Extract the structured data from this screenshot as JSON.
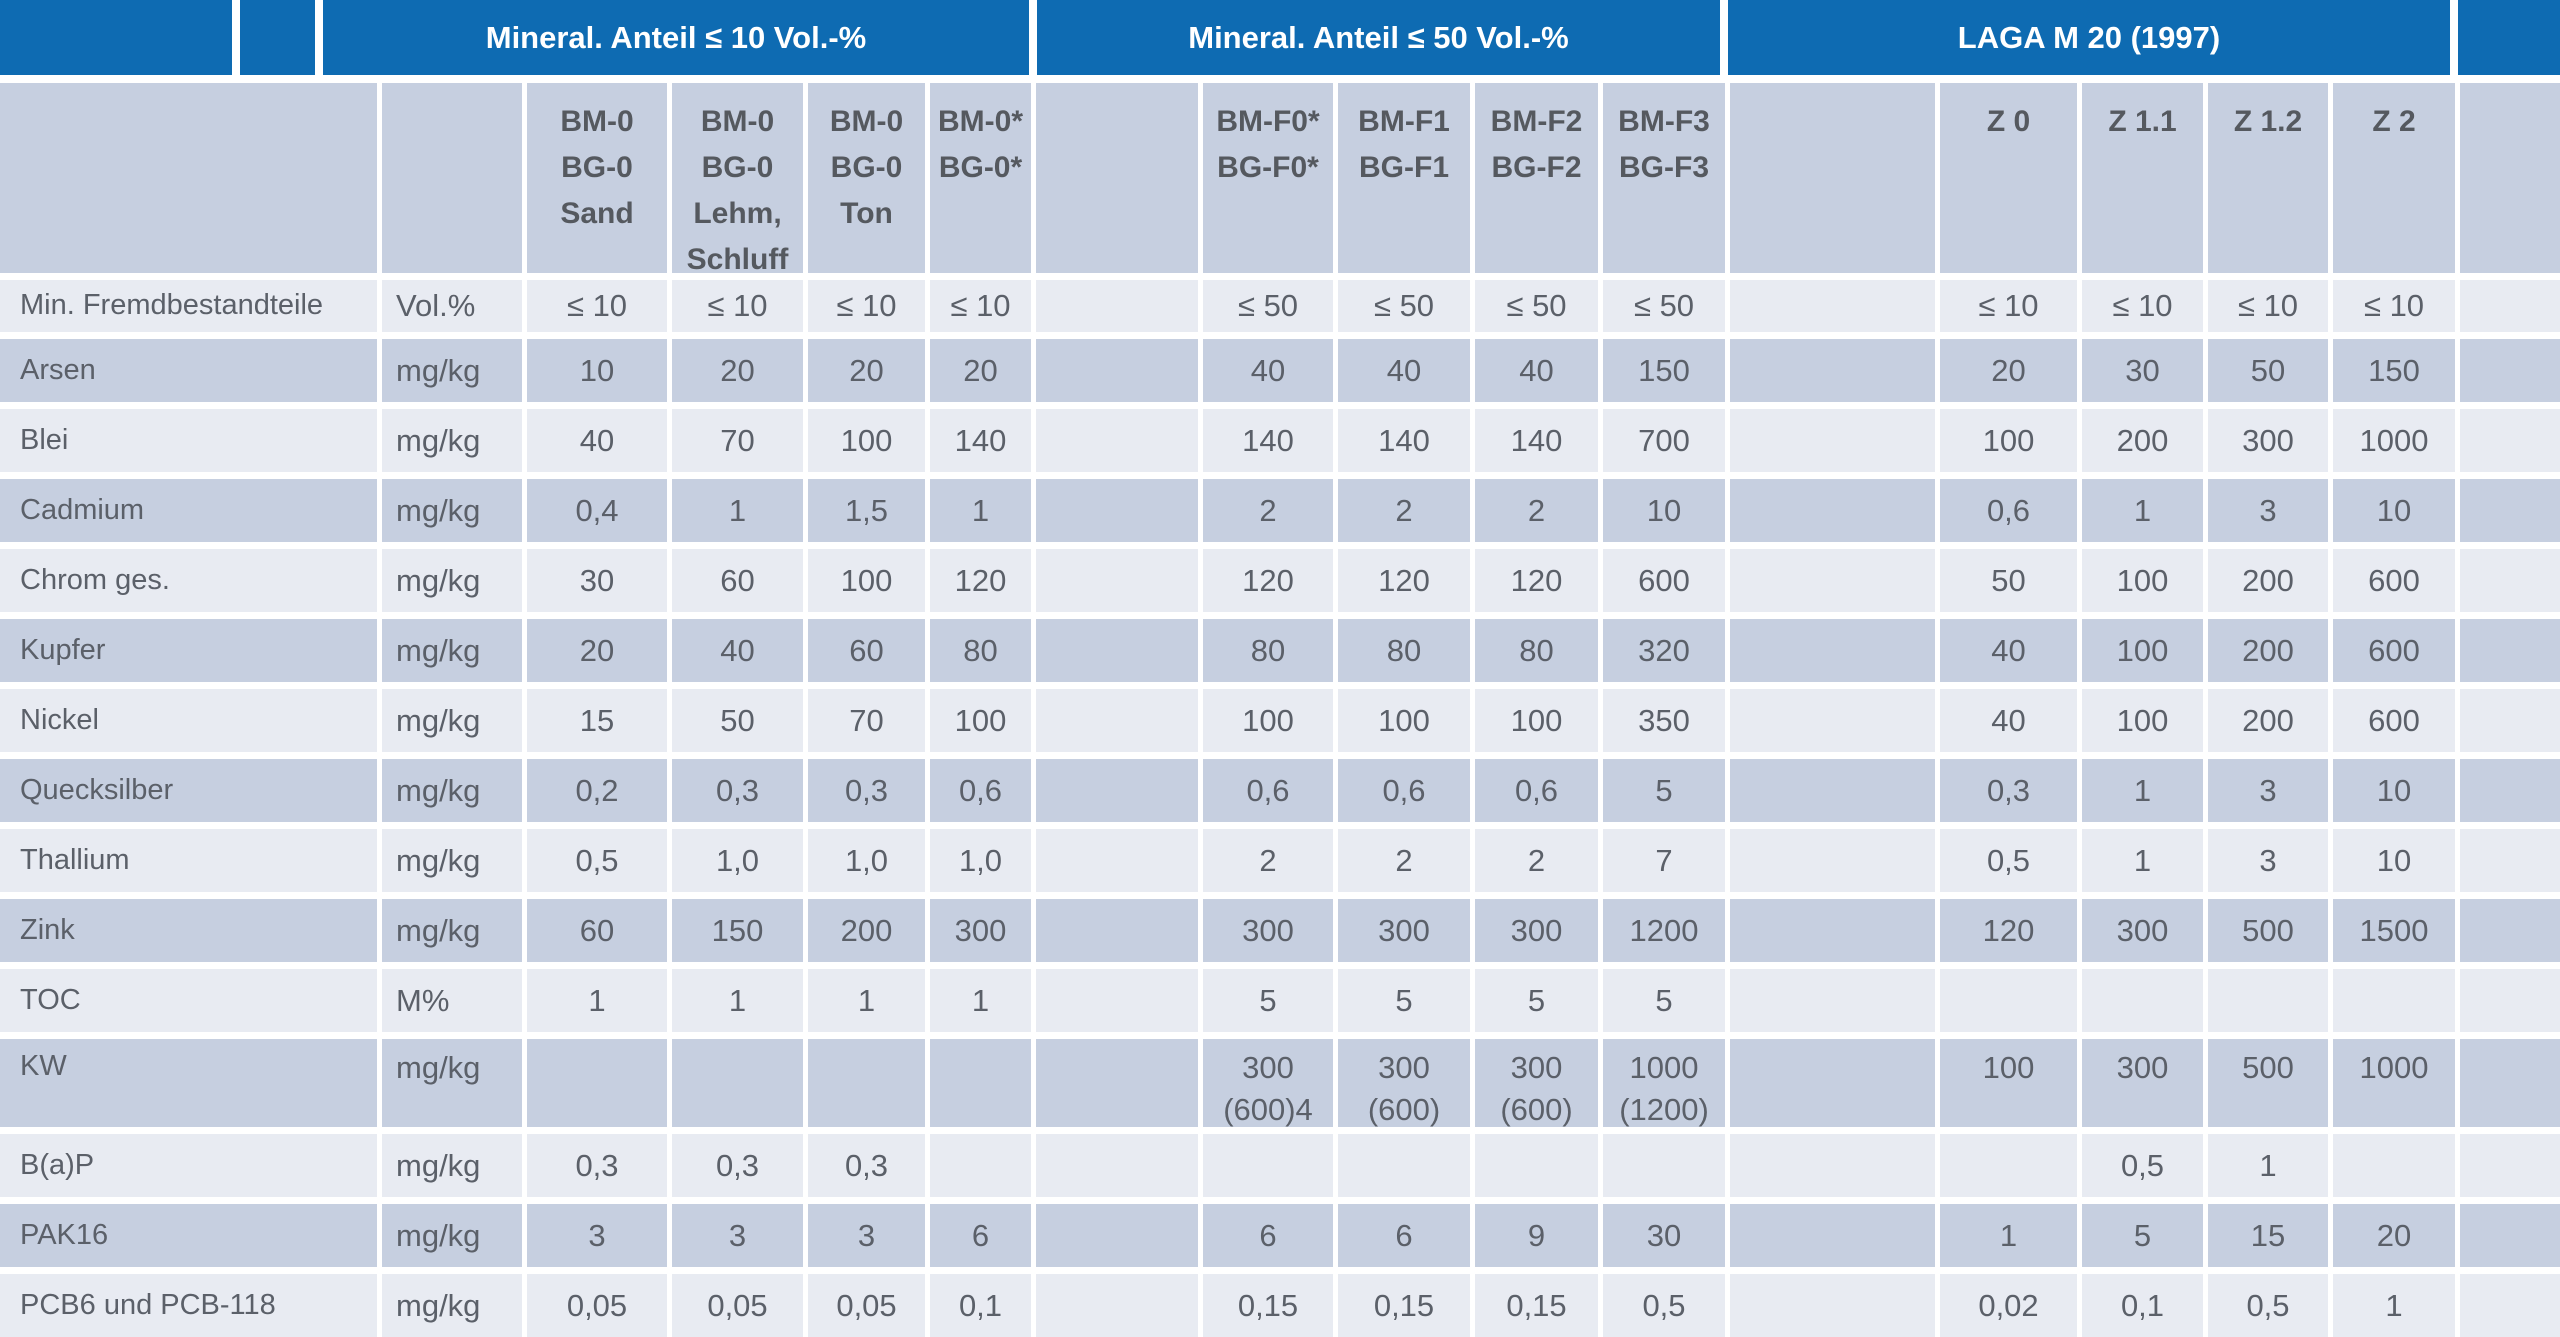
{
  "colors": {
    "header_blue": "#0e6bb2",
    "stripe_dark": "#c6cfe0",
    "stripe_light": "#e8ebf2",
    "text_gray": "#5b6069"
  },
  "table": {
    "group_headers": {
      "g1": "Mineral. Anteil ≤ 10 Vol.-%",
      "g2": "Mineral. Anteil ≤ 50 Vol.-%",
      "g3": "LAGA M 20 (1997)"
    },
    "column_headers": [
      "BM-0\nBG-0\nSand",
      "BM-0\nBG-0\nLehm,\nSchluff",
      "BM-0\nBG-0\nTon",
      "BM-0*\nBG-0*",
      "BM-F0*\nBG-F0*",
      "BM-F1\nBG-F1",
      "BM-F2\nBG-F2",
      "BM-F3\nBG-F3",
      "Z 0",
      "Z 1.1",
      "Z 1.2",
      "Z 2"
    ],
    "rows": [
      {
        "label": "Min. Fremdbestandteile",
        "unit": "Vol.%",
        "values": [
          "≤ 10",
          "≤ 10",
          "≤ 10",
          "≤ 10",
          "≤ 50",
          "≤ 50",
          "≤ 50",
          "≤ 50",
          "≤ 10",
          "≤ 10",
          "≤ 10",
          "≤ 10"
        ]
      },
      {
        "label": "Arsen",
        "unit": "mg/kg",
        "values": [
          "10",
          "20",
          "20",
          "20",
          "40",
          "40",
          "40",
          "150",
          "20",
          "30",
          "50",
          "150"
        ]
      },
      {
        "label": "Blei",
        "unit": "mg/kg",
        "values": [
          "40",
          "70",
          "100",
          "140",
          "140",
          "140",
          "140",
          "700",
          "100",
          "200",
          "300",
          "1000"
        ]
      },
      {
        "label": "Cadmium",
        "unit": "mg/kg",
        "values": [
          "0,4",
          "1",
          "1,5",
          "1",
          "2",
          "2",
          "2",
          "10",
          "0,6",
          "1",
          "3",
          "10"
        ]
      },
      {
        "label": "Chrom ges.",
        "unit": "mg/kg",
        "values": [
          "30",
          "60",
          "100",
          "120",
          "120",
          "120",
          "120",
          "600",
          "50",
          "100",
          "200",
          "600"
        ]
      },
      {
        "label": "Kupfer",
        "unit": "mg/kg",
        "values": [
          "20",
          "40",
          "60",
          "80",
          "80",
          "80",
          "80",
          "320",
          "40",
          "100",
          "200",
          "600"
        ]
      },
      {
        "label": "Nickel",
        "unit": "mg/kg",
        "values": [
          "15",
          "50",
          "70",
          "100",
          "100",
          "100",
          "100",
          "350",
          "40",
          "100",
          "200",
          "600"
        ]
      },
      {
        "label": "Quecksilber",
        "unit": "mg/kg",
        "values": [
          "0,2",
          "0,3",
          "0,3",
          "0,6",
          "0,6",
          "0,6",
          "0,6",
          "5",
          "0,3",
          "1",
          "3",
          "10"
        ]
      },
      {
        "label": "Thallium",
        "unit": "mg/kg",
        "values": [
          "0,5",
          "1,0",
          "1,0",
          "1,0",
          "2",
          "2",
          "2",
          "7",
          "0,5",
          "1",
          "3",
          "10"
        ]
      },
      {
        "label": "Zink",
        "unit": "mg/kg",
        "values": [
          "60",
          "150",
          "200",
          "300",
          "300",
          "300",
          "300",
          "1200",
          "120",
          "300",
          "500",
          "1500"
        ]
      },
      {
        "label": "TOC",
        "unit": "M%",
        "values": [
          "1",
          "1",
          "1",
          "1",
          "5",
          "5",
          "5",
          "5",
          "",
          "",
          "",
          ""
        ]
      },
      {
        "label": "KW",
        "unit": "mg/kg",
        "tall": true,
        "values": [
          "",
          "",
          "",
          "",
          "300\n(600)4",
          "300\n(600)",
          "300\n(600)",
          "1000\n(1200)",
          "100",
          "300",
          "500",
          "1000"
        ]
      },
      {
        "label": "B(a)P",
        "unit": "mg/kg",
        "values": [
          "0,3",
          "0,3",
          "0,3",
          "",
          "",
          "",
          "",
          "",
          "",
          "0,5",
          "1",
          ""
        ]
      },
      {
        "label": "PAK16",
        "unit": "mg/kg",
        "values": [
          "3",
          "3",
          "3",
          "6",
          "6",
          "6",
          "9",
          "30",
          "1",
          "5",
          "15",
          "20"
        ]
      },
      {
        "label": "PCB6 und PCB-118",
        "unit": "mg/kg",
        "values": [
          "0,05",
          "0,05",
          "0,05",
          "0,1",
          "0,15",
          "0,15",
          "0,15",
          "0,5",
          "0,02",
          "0,1",
          "0,5",
          "1"
        ]
      }
    ]
  }
}
